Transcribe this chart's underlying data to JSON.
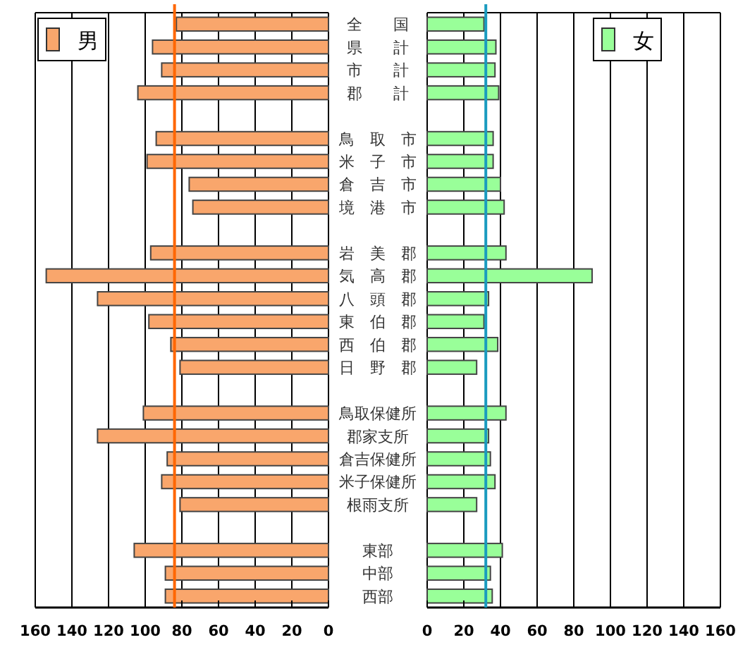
{
  "chart_data": [
    {
      "type": "bar",
      "orientation": "horizontal",
      "categories": [
        null,
        null,
        null,
        null,
        null,
        null,
        null,
        null,
        null,
        null,
        null,
        null,
        null,
        null,
        null,
        null,
        null,
        null,
        null,
        null,
        null,
        null,
        null,
        null,
        null,
        null
      ],
      "series": [
        {
          "name": "男",
          "color": "#f9a66c",
          "values": [
            83,
            96,
            91,
            104,
            null,
            94,
            99,
            76,
            74,
            null,
            97,
            154,
            126,
            98,
            86,
            81,
            null,
            101,
            126,
            88,
            91,
            81,
            null,
            106,
            89,
            89
          ]
        }
      ],
      "xlim": [
        160,
        0
      ],
      "xticks": [
        160,
        140,
        120,
        100,
        80,
        60,
        40,
        20,
        0
      ],
      "grid": "x",
      "legend": "top left",
      "tick_labels": "x",
      "ref_lines": [
        {
          "axis": "x",
          "value": 84,
          "color": "#ff6600"
        }
      ]
    },
    {
      "type": "bar",
      "orientation": "horizontal",
      "categories": [
        "全　　国",
        "県　　計",
        "市　　計",
        "郡　　計",
        null,
        "鳥　取　市",
        "米　子　市",
        "倉　吉　市",
        "境　港　市",
        null,
        "岩　美　郡",
        "気　高　郡",
        "八　頭　郡",
        "東　伯　郡",
        "西　伯　郡",
        "日　野　郡",
        null,
        "鳥取保健所",
        "郡家支所",
        "倉吉保健所",
        "米子保健所",
        "根雨支所",
        null,
        "東部",
        "中部",
        "西部"
      ],
      "series": [
        {
          "name": "女",
          "color": "#99ff99",
          "values": [
            31,
            37.5,
            37,
            39,
            null,
            36,
            36,
            40,
            42,
            null,
            43,
            90,
            33.5,
            31,
            38.5,
            27,
            null,
            43,
            33.5,
            34.5,
            37,
            27,
            null,
            41,
            34.5,
            35.5
          ]
        }
      ],
      "xlim": [
        0,
        160
      ],
      "xticks": [
        0,
        20,
        40,
        60,
        80,
        100,
        120,
        140,
        160
      ],
      "grid": "x",
      "legend": "top right",
      "ref_lines": [
        {
          "axis": "x",
          "value": 32,
          "color": "#1a9bbf"
        }
      ]
    }
  ]
}
